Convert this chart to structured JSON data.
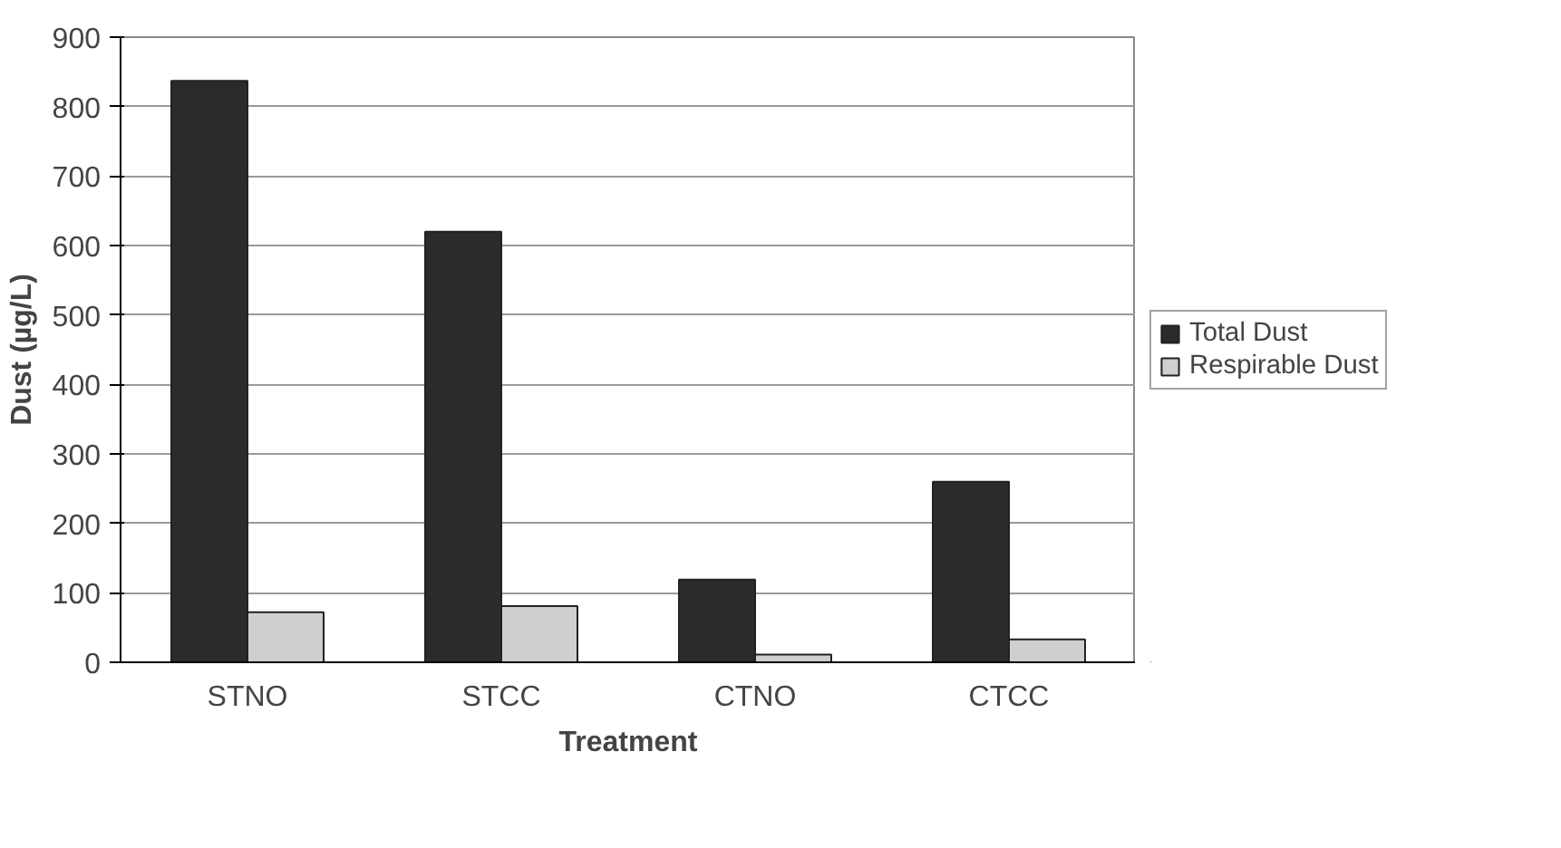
{
  "chart_data": {
    "type": "bar",
    "xlabel": "Treatment",
    "ylabel": "Dust (µg/L)",
    "categories": [
      "STNO",
      "STCC",
      "CTNO",
      "CTCC"
    ],
    "series": [
      {
        "name": "Total Dust",
        "color": "#2b2b2b",
        "values": [
          837,
          620,
          119,
          260
        ]
      },
      {
        "name": "Respirable Dust",
        "color": "#cfcfcf",
        "values": [
          72,
          81,
          11,
          33
        ]
      }
    ],
    "ylim": [
      0,
      900
    ],
    "yticks": [
      0,
      100,
      200,
      300,
      400,
      500,
      600,
      700,
      800,
      900
    ],
    "grid": "y",
    "legend": "right"
  }
}
